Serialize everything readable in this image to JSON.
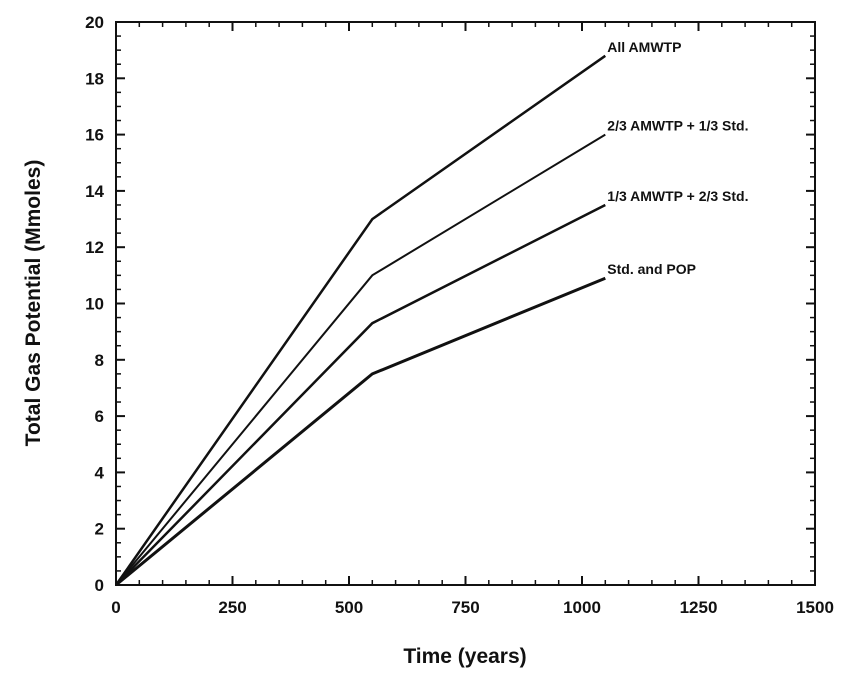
{
  "chart_data": {
    "type": "line",
    "title": "",
    "xlabel": "Time (years)",
    "ylabel": "Total Gas Potential (Mmoles)",
    "xlim": [
      0,
      1500
    ],
    "ylim": [
      0,
      20
    ],
    "x_ticks": [
      0,
      250,
      500,
      750,
      1000,
      1250,
      1500
    ],
    "y_ticks": [
      0,
      2,
      4,
      6,
      8,
      10,
      12,
      14,
      16,
      18,
      20
    ],
    "x_tick_labels": [
      "0",
      "250",
      "500",
      "750",
      "1000",
      "1250",
      "1500"
    ],
    "y_tick_labels": [
      "0",
      "2",
      "4",
      "6",
      "8",
      "10",
      "12",
      "14",
      "16",
      "18",
      "20"
    ],
    "grid": false,
    "legend": "none",
    "series": [
      {
        "name": "All AMWTP",
        "x": [
          0,
          550,
          1050
        ],
        "y": [
          0,
          13.0,
          18.8
        ]
      },
      {
        "name": "2/3 AMWTP + 1/3 Std.",
        "x": [
          0,
          550,
          1050
        ],
        "y": [
          0,
          11.0,
          16.0
        ]
      },
      {
        "name": "1/3 AMWTP + 2/3 Std.",
        "x": [
          0,
          550,
          1050
        ],
        "y": [
          0,
          9.3,
          13.5
        ]
      },
      {
        "name": "Std. and POP",
        "x": [
          0,
          550,
          1050
        ],
        "y": [
          0,
          7.5,
          10.9
        ]
      }
    ],
    "line_color": "#111111"
  }
}
